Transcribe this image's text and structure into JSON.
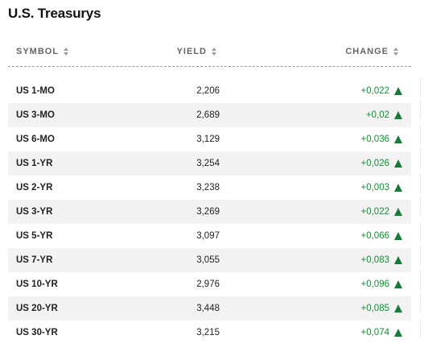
{
  "title": "U.S. Treasurys",
  "header": {
    "symbol": "SYMBOL",
    "yield": "YIELD",
    "change": "CHANGE"
  },
  "rows": [
    {
      "symbol": "US 1-MO",
      "yield": "2,206",
      "change": "+0,022"
    },
    {
      "symbol": "US 3-MO",
      "yield": "2,689",
      "change": "+0,02"
    },
    {
      "symbol": "US 6-MO",
      "yield": "3,129",
      "change": "+0,036"
    },
    {
      "symbol": "US 1-YR",
      "yield": "3,254",
      "change": "+0,026"
    },
    {
      "symbol": "US 2-YR",
      "yield": "3,238",
      "change": "+0,003"
    },
    {
      "symbol": "US 3-YR",
      "yield": "3,269",
      "change": "+0,022"
    },
    {
      "symbol": "US 5-YR",
      "yield": "3,097",
      "change": "+0,066"
    },
    {
      "symbol": "US 7-YR",
      "yield": "3,055",
      "change": "+0,083"
    },
    {
      "symbol": "US 10-YR",
      "yield": "2,976",
      "change": "+0,096"
    },
    {
      "symbol": "US 20-YR",
      "yield": "3,448",
      "change": "+0,085"
    },
    {
      "symbol": "US 30-YR",
      "yield": "3,215",
      "change": "+0,074"
    }
  ],
  "icons": {
    "sort": "sort-icon",
    "up": "up-arrow-icon"
  },
  "colors": {
    "positive": "#1a8a3a",
    "row_alt": "#f3f3f3"
  }
}
